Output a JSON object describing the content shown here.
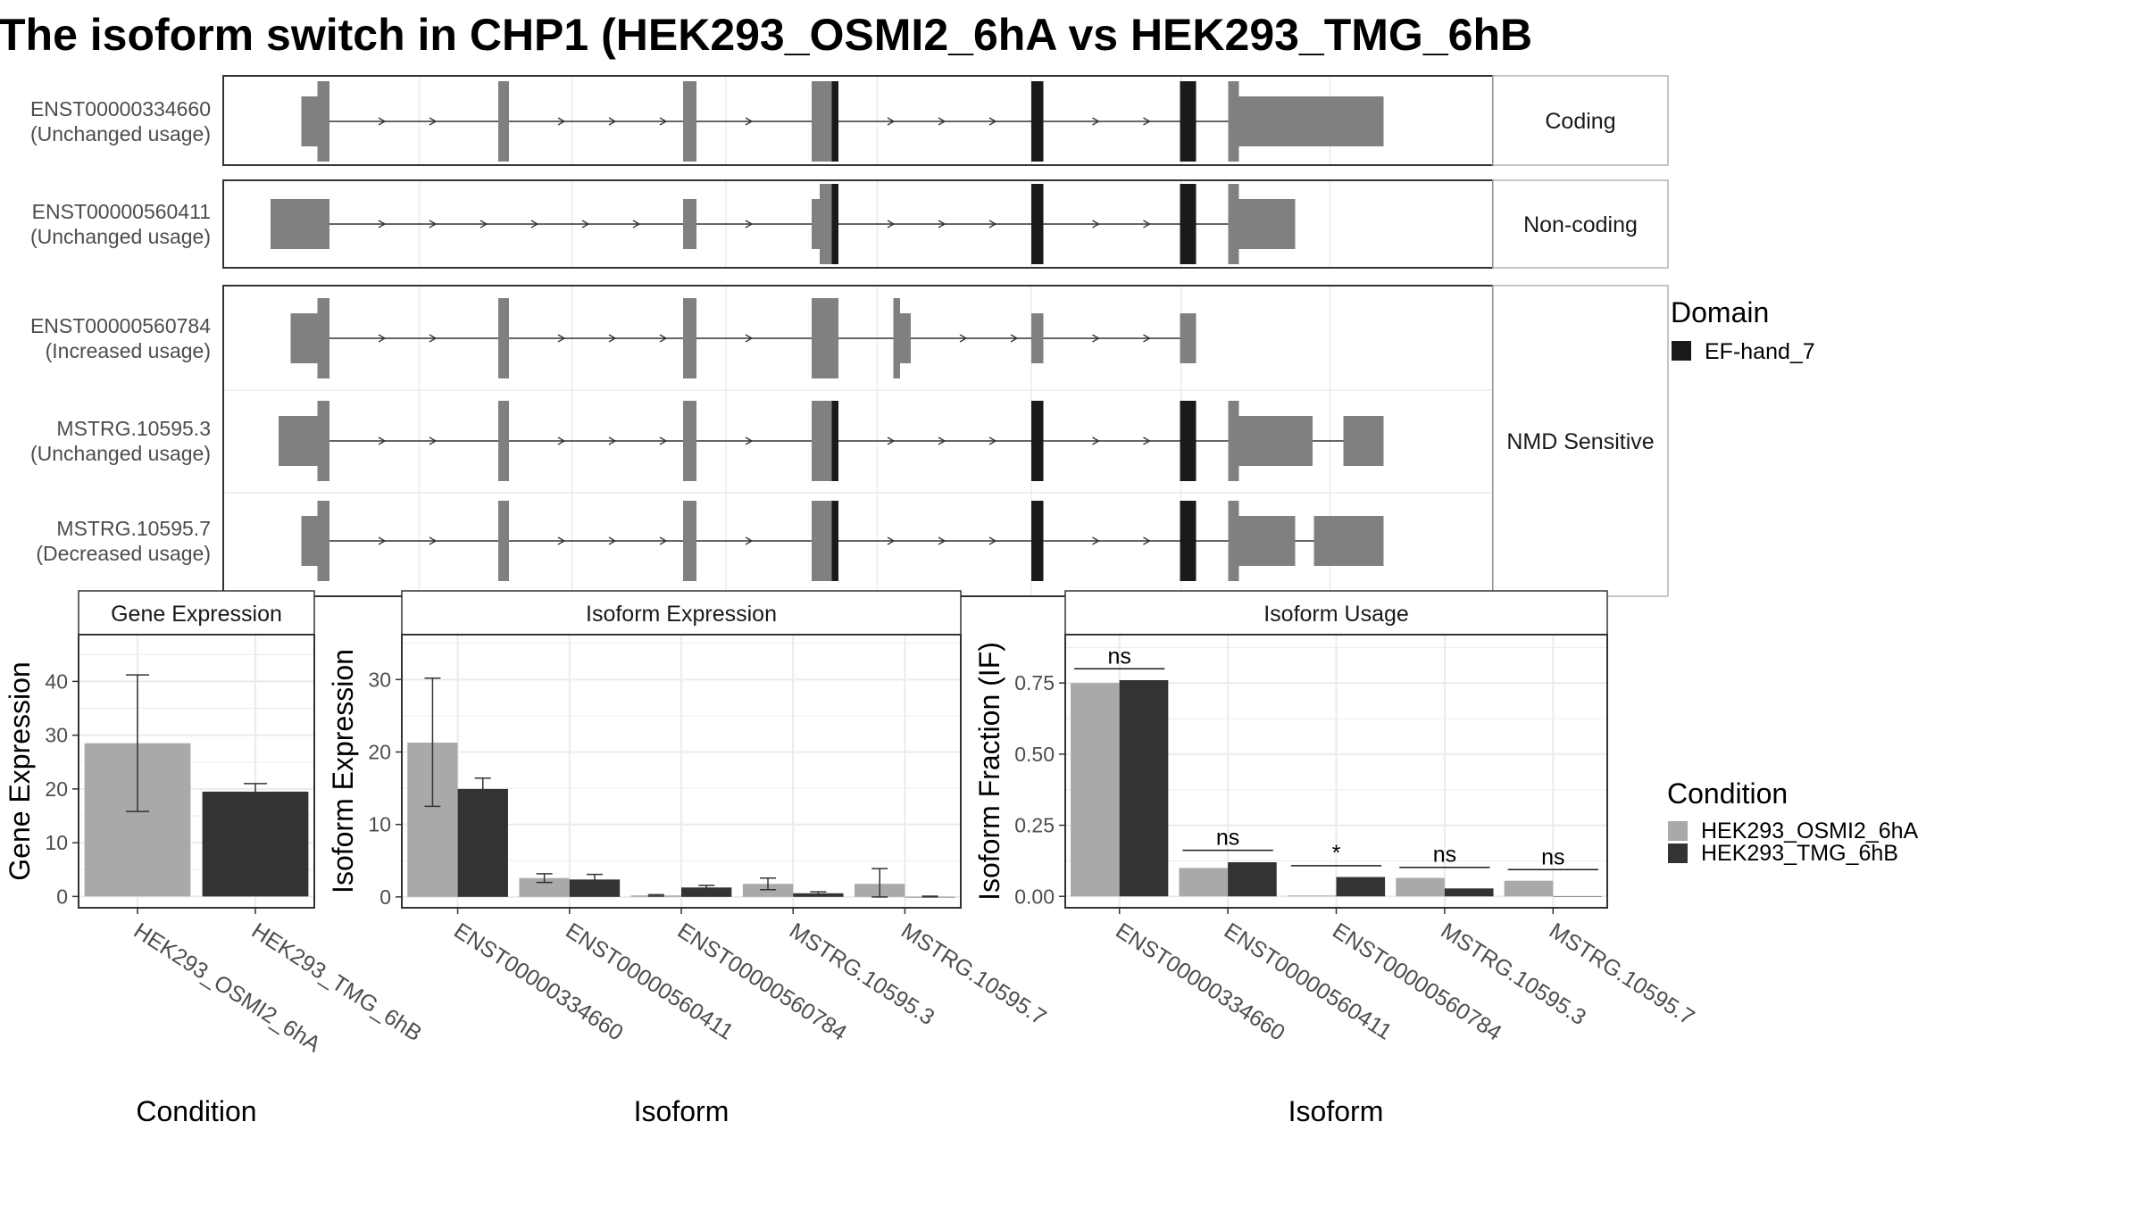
{
  "title": "The isoform switch in CHP1 (HEK293_OSMI2_6hA vs HEK293_TMG_6hB",
  "colors": {
    "exon": "#808080",
    "domain": "#1a1a1a",
    "condA": "#a9a9a9",
    "condB": "#333333",
    "grid": "#ebebeb",
    "strip": "#ffffff",
    "border": "#333333"
  },
  "transcripts": {
    "groups": [
      {
        "label": "Coding",
        "rows": [
          0
        ]
      },
      {
        "label": "Non-coding",
        "rows": [
          1
        ]
      },
      {
        "label": "NMD Sensitive",
        "rows": [
          2,
          3,
          4
        ]
      }
    ],
    "rows": [
      {
        "id": "ENST00000334660",
        "usage": "(Unchanged usage)",
        "exons": [
          [
            225,
            237,
            "s"
          ],
          [
            237,
            246,
            "t"
          ],
          [
            372,
            380,
            "t"
          ],
          [
            510,
            520,
            "t"
          ],
          [
            606,
            626,
            "t"
          ],
          [
            770,
            779,
            "t"
          ],
          [
            881,
            893,
            "t"
          ],
          [
            917,
            925,
            "t"
          ],
          [
            925,
            1033,
            "s"
          ]
        ],
        "domains": [
          [
            621,
            626
          ],
          [
            770,
            779
          ],
          [
            881,
            893
          ]
        ]
      },
      {
        "id": "ENST00000560411",
        "usage": "(Unchanged usage)",
        "exons": [
          [
            202,
            246,
            "s"
          ],
          [
            510,
            520,
            "s"
          ],
          [
            606,
            612,
            "s"
          ],
          [
            612,
            626,
            "t"
          ],
          [
            770,
            779,
            "t"
          ],
          [
            881,
            893,
            "t"
          ],
          [
            917,
            925,
            "t"
          ],
          [
            925,
            967,
            "s"
          ]
        ],
        "domains": [
          [
            621,
            626
          ],
          [
            770,
            779
          ],
          [
            881,
            893
          ]
        ]
      },
      {
        "id": "ENST00000560784",
        "usage": "(Increased usage)",
        "exons": [
          [
            217,
            237,
            "s"
          ],
          [
            237,
            246,
            "t"
          ],
          [
            372,
            380,
            "t"
          ],
          [
            510,
            520,
            "t"
          ],
          [
            606,
            626,
            "t"
          ],
          [
            667,
            672,
            "t"
          ],
          [
            672,
            680,
            "s"
          ],
          [
            770,
            779,
            "s"
          ],
          [
            881,
            893,
            "s"
          ]
        ],
        "domains": []
      },
      {
        "id": "MSTRG.10595.3",
        "usage": "(Unchanged usage)",
        "exons": [
          [
            208,
            237,
            "s"
          ],
          [
            237,
            246,
            "t"
          ],
          [
            372,
            380,
            "t"
          ],
          [
            510,
            520,
            "t"
          ],
          [
            606,
            626,
            "t"
          ],
          [
            770,
            779,
            "t"
          ],
          [
            881,
            893,
            "t"
          ],
          [
            917,
            925,
            "t"
          ],
          [
            925,
            980,
            "s"
          ],
          [
            1003,
            1033,
            "s"
          ]
        ],
        "domains": [
          [
            621,
            626
          ],
          [
            770,
            779
          ],
          [
            881,
            893
          ]
        ]
      },
      {
        "id": "MSTRG.10595.7",
        "usage": "(Decreased usage)",
        "exons": [
          [
            225,
            237,
            "s"
          ],
          [
            237,
            246,
            "t"
          ],
          [
            372,
            380,
            "t"
          ],
          [
            510,
            520,
            "t"
          ],
          [
            606,
            626,
            "t"
          ],
          [
            770,
            779,
            "t"
          ],
          [
            881,
            893,
            "t"
          ],
          [
            917,
            925,
            "t"
          ],
          [
            925,
            967,
            "s"
          ],
          [
            981,
            1033,
            "s"
          ]
        ],
        "domains": [
          [
            621,
            626
          ],
          [
            770,
            779
          ],
          [
            881,
            893
          ]
        ]
      }
    ]
  },
  "domain_legend": {
    "title": "Domain",
    "items": [
      "EF-hand_7"
    ]
  },
  "condition_legend": {
    "title": "Condition",
    "items": [
      "HEK293_OSMI2_6hA",
      "HEK293_TMG_6hB"
    ]
  },
  "chart_data": [
    {
      "type": "bar",
      "title": "Gene Expression",
      "xlabel": "Condition",
      "ylabel": "Gene Expression",
      "categories": [
        "HEK293_OSMI2_6hA",
        "HEK293_TMG_6hB"
      ],
      "values": [
        28.5,
        19.5
      ],
      "errors": [
        [
          15.8,
          41.2
        ],
        [
          18.2,
          21.0
        ]
      ],
      "ylim": [
        -2.1,
        48.7
      ],
      "yticks": [
        0,
        10,
        20,
        30,
        40
      ]
    },
    {
      "type": "bar",
      "title": "Isoform Expression",
      "xlabel": "Isoform",
      "ylabel": "Isoform Expression",
      "categories": [
        "ENST00000334660",
        "ENST00000560411",
        "ENST00000560784",
        "MSTRG.10595.3",
        "MSTRG.10595.7"
      ],
      "series": [
        {
          "name": "HEK293_OSMI2_6hA",
          "values": [
            21.3,
            2.6,
            0.2,
            1.8,
            1.8
          ],
          "errors": [
            [
              12.5,
              30.2
            ],
            [
              2.0,
              3.2
            ],
            [
              0.1,
              0.3
            ],
            [
              1.0,
              2.6
            ],
            [
              0.0,
              3.9
            ]
          ]
        },
        {
          "name": "HEK293_TMG_6hB",
          "values": [
            14.9,
            2.4,
            1.3,
            0.5,
            0.0
          ],
          "errors": [
            [
              13.3,
              16.4
            ],
            [
              1.6,
              3.1
            ],
            [
              1.0,
              1.6
            ],
            [
              0.3,
              0.7
            ],
            [
              0.0,
              0.1
            ]
          ]
        }
      ],
      "ylim": [
        -1.5,
        36.2
      ],
      "yticks": [
        0,
        10,
        20,
        30
      ]
    },
    {
      "type": "bar",
      "title": "Isoform Usage",
      "xlabel": "Isoform",
      "ylabel": "Isoform Fraction (IF)",
      "categories": [
        "ENST00000334660",
        "ENST00000560411",
        "ENST00000560784",
        "MSTRG.10595.3",
        "MSTRG.10595.7"
      ],
      "series": [
        {
          "name": "HEK293_OSMI2_6hA",
          "values": [
            0.75,
            0.1,
            0.003,
            0.065,
            0.055
          ]
        },
        {
          "name": "HEK293_TMG_6hB",
          "values": [
            0.76,
            0.12,
            0.068,
            0.028,
            0.0
          ]
        }
      ],
      "significance": [
        "ns",
        "ns",
        "*",
        "ns",
        "ns"
      ],
      "sig_level": [
        0.8,
        0.162,
        0.108,
        0.102,
        0.094
      ],
      "ylim": [
        -0.04,
        0.92
      ],
      "yticks": [
        0.0,
        0.25,
        0.5,
        0.75
      ],
      "yticklabels": [
        "0.00",
        "0.25",
        "0.50",
        "0.75"
      ]
    }
  ]
}
